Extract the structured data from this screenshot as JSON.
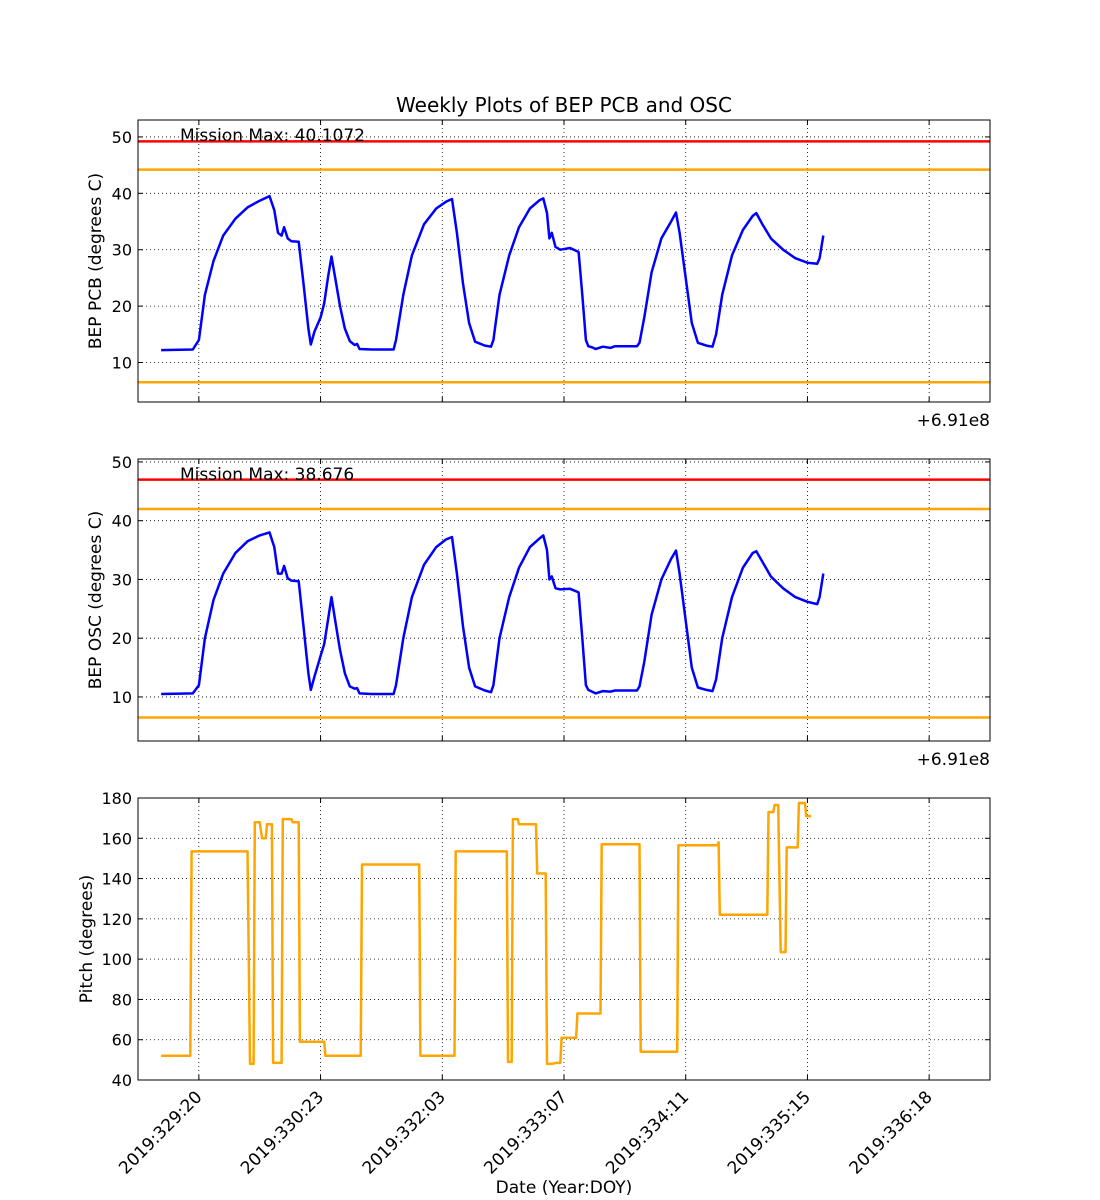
{
  "figure_title": "Weekly Plots of BEP PCB and OSC",
  "x_axis_label": "Date (Year:DOY)",
  "x_offset_label": "+6.91e8",
  "x_tick_labels": [
    "2019:329:20",
    "2019:330:23",
    "2019:332:03",
    "2019:333:07",
    "2019:334:11",
    "2019:335:15",
    "2019:336:18"
  ],
  "chart_data": [
    {
      "type": "line",
      "ylabel": "BEP PCB (degrees C)",
      "ylim": [
        3,
        53
      ],
      "yticks": [
        10,
        20,
        30,
        40,
        50
      ],
      "xlim": [
        -0.5,
        6.5
      ],
      "annotation": "Mission Max: 40.1072",
      "grid": true,
      "limit_lines": [
        {
          "value": 49.2,
          "color": "#ff0000"
        },
        {
          "value": 44.2,
          "color": "#ffa500"
        },
        {
          "value": 6.5,
          "color": "#ffa500"
        }
      ],
      "series": [
        {
          "color": "#0000ff",
          "points": [
            [
              -0.31,
              12.2
            ],
            [
              -0.05,
              12.3
            ],
            [
              0.0,
              14
            ],
            [
              0.05,
              22
            ],
            [
              0.12,
              28
            ],
            [
              0.2,
              32.5
            ],
            [
              0.3,
              35.5
            ],
            [
              0.4,
              37.5
            ],
            [
              0.5,
              38.7
            ],
            [
              0.58,
              39.5
            ],
            [
              0.62,
              37
            ],
            [
              0.65,
              33
            ],
            [
              0.68,
              32.5
            ],
            [
              0.7,
              34
            ],
            [
              0.73,
              32
            ],
            [
              0.76,
              31.5
            ],
            [
              0.82,
              31.4
            ],
            [
              0.86,
              24
            ],
            [
              0.9,
              16
            ],
            [
              0.92,
              13.2
            ],
            [
              0.95,
              15.5
            ],
            [
              1.0,
              18
            ],
            [
              1.03,
              20.5
            ],
            [
              1.06,
              25
            ],
            [
              1.09,
              28.8
            ],
            [
              1.12,
              25
            ],
            [
              1.16,
              20
            ],
            [
              1.2,
              16
            ],
            [
              1.24,
              13.8
            ],
            [
              1.28,
              13.1
            ],
            [
              1.3,
              13.3
            ],
            [
              1.32,
              12.4
            ],
            [
              1.42,
              12.3
            ],
            [
              1.6,
              12.3
            ],
            [
              1.62,
              14
            ],
            [
              1.68,
              22
            ],
            [
              1.75,
              29
            ],
            [
              1.85,
              34.5
            ],
            [
              1.95,
              37.3
            ],
            [
              2.03,
              38.5
            ],
            [
              2.08,
              39.0
            ],
            [
              2.12,
              33
            ],
            [
              2.17,
              24
            ],
            [
              2.22,
              17
            ],
            [
              2.27,
              13.7
            ],
            [
              2.35,
              13
            ],
            [
              2.4,
              12.8
            ],
            [
              2.42,
              14
            ],
            [
              2.47,
              22
            ],
            [
              2.55,
              29
            ],
            [
              2.63,
              34
            ],
            [
              2.72,
              37.3
            ],
            [
              2.8,
              38.8
            ],
            [
              2.83,
              39.1
            ],
            [
              2.86,
              36.5
            ],
            [
              2.88,
              32
            ],
            [
              2.9,
              33
            ],
            [
              2.93,
              30.5
            ],
            [
              2.97,
              30
            ],
            [
              3.05,
              30.3
            ],
            [
              3.12,
              29.6
            ],
            [
              3.15,
              22
            ],
            [
              3.18,
              14
            ],
            [
              3.2,
              12.9
            ],
            [
              3.23,
              12.7
            ],
            [
              3.26,
              12.4
            ],
            [
              3.32,
              12.8
            ],
            [
              3.38,
              12.6
            ],
            [
              3.42,
              12.9
            ],
            [
              3.6,
              12.9
            ],
            [
              3.62,
              13.5
            ],
            [
              3.66,
              18
            ],
            [
              3.72,
              26
            ],
            [
              3.8,
              32
            ],
            [
              3.88,
              35
            ],
            [
              3.92,
              36.6
            ],
            [
              3.95,
              33
            ],
            [
              4.0,
              25
            ],
            [
              4.05,
              17
            ],
            [
              4.1,
              13.5
            ],
            [
              4.17,
              13
            ],
            [
              4.22,
              12.8
            ],
            [
              4.25,
              15
            ],
            [
              4.3,
              22
            ],
            [
              4.38,
              29
            ],
            [
              4.47,
              33.5
            ],
            [
              4.55,
              36
            ],
            [
              4.58,
              36.5
            ],
            [
              4.63,
              34.5
            ],
            [
              4.7,
              32
            ],
            [
              4.8,
              30
            ],
            [
              4.9,
              28.5
            ],
            [
              5.0,
              27.7
            ],
            [
              5.08,
              27.5
            ],
            [
              5.1,
              28.5
            ],
            [
              5.13,
              32.5
            ]
          ]
        }
      ]
    },
    {
      "type": "line",
      "ylabel": "BEP OSC (degrees C)",
      "ylim": [
        2.5,
        50.5
      ],
      "yticks": [
        10,
        20,
        30,
        40,
        50
      ],
      "xlim": [
        -0.5,
        6.5
      ],
      "annotation": "Mission Max: 38.676",
      "grid": true,
      "limit_lines": [
        {
          "value": 47.0,
          "color": "#ff0000"
        },
        {
          "value": 42.0,
          "color": "#ffa500"
        },
        {
          "value": 6.5,
          "color": "#ffa500"
        }
      ],
      "series": [
        {
          "color": "#0000ff",
          "points": [
            [
              -0.31,
              10.5
            ],
            [
              -0.05,
              10.6
            ],
            [
              0.0,
              12
            ],
            [
              0.05,
              20
            ],
            [
              0.12,
              26.5
            ],
            [
              0.2,
              31
            ],
            [
              0.3,
              34.5
            ],
            [
              0.4,
              36.5
            ],
            [
              0.5,
              37.5
            ],
            [
              0.58,
              38.0
            ],
            [
              0.62,
              35.5
            ],
            [
              0.65,
              31
            ],
            [
              0.68,
              31
            ],
            [
              0.7,
              32.3
            ],
            [
              0.73,
              30.2
            ],
            [
              0.76,
              29.8
            ],
            [
              0.82,
              29.7
            ],
            [
              0.86,
              22
            ],
            [
              0.9,
              14
            ],
            [
              0.92,
              11.2
            ],
            [
              0.95,
              13.5
            ],
            [
              1.0,
              17
            ],
            [
              1.03,
              19
            ],
            [
              1.06,
              23
            ],
            [
              1.09,
              27
            ],
            [
              1.12,
              23
            ],
            [
              1.16,
              18
            ],
            [
              1.2,
              14
            ],
            [
              1.24,
              11.8
            ],
            [
              1.28,
              11.4
            ],
            [
              1.3,
              11.5
            ],
            [
              1.32,
              10.6
            ],
            [
              1.42,
              10.5
            ],
            [
              1.6,
              10.5
            ],
            [
              1.62,
              12
            ],
            [
              1.68,
              20
            ],
            [
              1.75,
              27
            ],
            [
              1.85,
              32.5
            ],
            [
              1.95,
              35.5
            ],
            [
              2.03,
              36.8
            ],
            [
              2.08,
              37.2
            ],
            [
              2.12,
              31
            ],
            [
              2.17,
              22
            ],
            [
              2.22,
              15
            ],
            [
              2.27,
              11.8
            ],
            [
              2.35,
              11.1
            ],
            [
              2.4,
              10.8
            ],
            [
              2.42,
              12
            ],
            [
              2.47,
              20
            ],
            [
              2.55,
              27
            ],
            [
              2.63,
              32
            ],
            [
              2.72,
              35.5
            ],
            [
              2.8,
              37
            ],
            [
              2.83,
              37.5
            ],
            [
              2.86,
              35
            ],
            [
              2.88,
              30
            ],
            [
              2.9,
              30.5
            ],
            [
              2.93,
              28.5
            ],
            [
              2.97,
              28.3
            ],
            [
              3.05,
              28.4
            ],
            [
              3.12,
              27.8
            ],
            [
              3.15,
              20
            ],
            [
              3.18,
              12
            ],
            [
              3.2,
              11.2
            ],
            [
              3.23,
              10.9
            ],
            [
              3.26,
              10.6
            ],
            [
              3.32,
              11
            ],
            [
              3.38,
              10.9
            ],
            [
              3.42,
              11.1
            ],
            [
              3.6,
              11.1
            ],
            [
              3.62,
              11.8
            ],
            [
              3.66,
              16
            ],
            [
              3.72,
              24
            ],
            [
              3.8,
              30
            ],
            [
              3.88,
              33.5
            ],
            [
              3.92,
              34.9
            ],
            [
              3.95,
              31
            ],
            [
              4.0,
              23
            ],
            [
              4.05,
              15
            ],
            [
              4.1,
              11.6
            ],
            [
              4.17,
              11.2
            ],
            [
              4.22,
              11.0
            ],
            [
              4.25,
              13
            ],
            [
              4.3,
              20
            ],
            [
              4.38,
              27
            ],
            [
              4.47,
              32
            ],
            [
              4.55,
              34.5
            ],
            [
              4.58,
              34.8
            ],
            [
              4.63,
              33
            ],
            [
              4.7,
              30.5
            ],
            [
              4.8,
              28.5
            ],
            [
              4.9,
              27
            ],
            [
              5.0,
              26.2
            ],
            [
              5.08,
              25.8
            ],
            [
              5.1,
              27
            ],
            [
              5.13,
              31
            ]
          ]
        }
      ]
    },
    {
      "type": "line",
      "ylabel": "Pitch (degrees)",
      "ylim": [
        40,
        180
      ],
      "yticks": [
        40,
        60,
        80,
        100,
        120,
        140,
        160,
        180
      ],
      "xlim": [
        -0.5,
        6.5
      ],
      "grid": true,
      "series": [
        {
          "color": "#ffa500",
          "points": [
            [
              -0.31,
              52
            ],
            [
              -0.07,
              52
            ],
            [
              -0.06,
              153.5
            ],
            [
              0.4,
              153.5
            ],
            [
              0.42,
              48
            ],
            [
              0.45,
              48
            ],
            [
              0.46,
              168
            ],
            [
              0.5,
              168
            ],
            [
              0.52,
              160
            ],
            [
              0.55,
              160
            ],
            [
              0.56,
              167
            ],
            [
              0.6,
              167
            ],
            [
              0.61,
              48.5
            ],
            [
              0.68,
              48.5
            ],
            [
              0.69,
              169.5
            ],
            [
              0.76,
              169.5
            ],
            [
              0.77,
              168
            ],
            [
              0.82,
              168
            ],
            [
              0.83,
              59
            ],
            [
              1.03,
              59
            ],
            [
              1.04,
              52
            ],
            [
              1.33,
              52
            ],
            [
              1.34,
              147
            ],
            [
              1.81,
              147
            ],
            [
              1.82,
              52
            ],
            [
              2.1,
              52
            ],
            [
              2.11,
              153.5
            ],
            [
              2.53,
              153.5
            ],
            [
              2.54,
              49
            ],
            [
              2.57,
              49
            ],
            [
              2.58,
              169.5
            ],
            [
              2.62,
              169.5
            ],
            [
              2.63,
              167
            ],
            [
              2.77,
              167
            ],
            [
              2.78,
              142.5
            ],
            [
              2.85,
              142.5
            ],
            [
              2.86,
              48
            ],
            [
              2.9,
              48
            ],
            [
              2.93,
              48.5
            ],
            [
              2.97,
              48.5
            ],
            [
              2.98,
              61
            ],
            [
              3.1,
              61
            ],
            [
              3.11,
              73
            ],
            [
              3.3,
              73
            ],
            [
              3.31,
              157
            ],
            [
              3.62,
              157
            ],
            [
              3.63,
              54
            ],
            [
              3.93,
              54
            ],
            [
              3.94,
              156.5
            ],
            [
              4.26,
              156.5
            ],
            [
              4.27,
              158
            ],
            [
              4.28,
              122
            ],
            [
              4.67,
              122
            ],
            [
              4.68,
              173
            ],
            [
              4.72,
              173
            ],
            [
              4.73,
              176.5
            ],
            [
              4.76,
              176.5
            ],
            [
              4.78,
              103.5
            ],
            [
              4.82,
              103.5
            ],
            [
              4.83,
              155.5
            ],
            [
              4.92,
              155.5
            ],
            [
              4.93,
              177.5
            ],
            [
              4.98,
              177.5
            ],
            [
              4.99,
              171
            ],
            [
              5.03,
              171
            ]
          ]
        }
      ]
    }
  ]
}
